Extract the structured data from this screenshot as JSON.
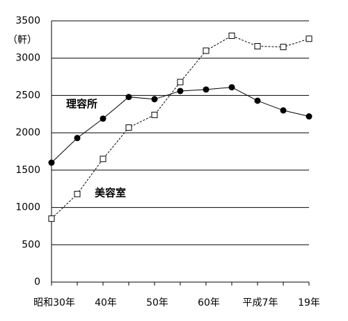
{
  "chart_data": {
    "type": "line",
    "y_unit": "（軒）",
    "categories": [
      "昭和30年",
      null,
      "40年",
      null,
      "50年",
      null,
      "60年",
      null,
      "平成7年",
      null,
      "19年"
    ],
    "series": [
      {
        "name": "理容所",
        "color": "#000000",
        "marker": "circle",
        "line_style": "solid",
        "values": [
          1600,
          1930,
          2190,
          2480,
          2450,
          2560,
          2580,
          2610,
          2430,
          2300,
          2220
        ]
      },
      {
        "name": "美容室",
        "color": "#000000",
        "marker": "square",
        "line_style": "dashed",
        "values": [
          850,
          1180,
          1650,
          2070,
          2240,
          2680,
          3100,
          3300,
          3160,
          3150,
          3260
        ]
      }
    ],
    "ylim": [
      0,
      3500
    ],
    "yticks": [
      0,
      500,
      1000,
      1500,
      2000,
      2500,
      3000,
      3500
    ],
    "grid": true
  }
}
